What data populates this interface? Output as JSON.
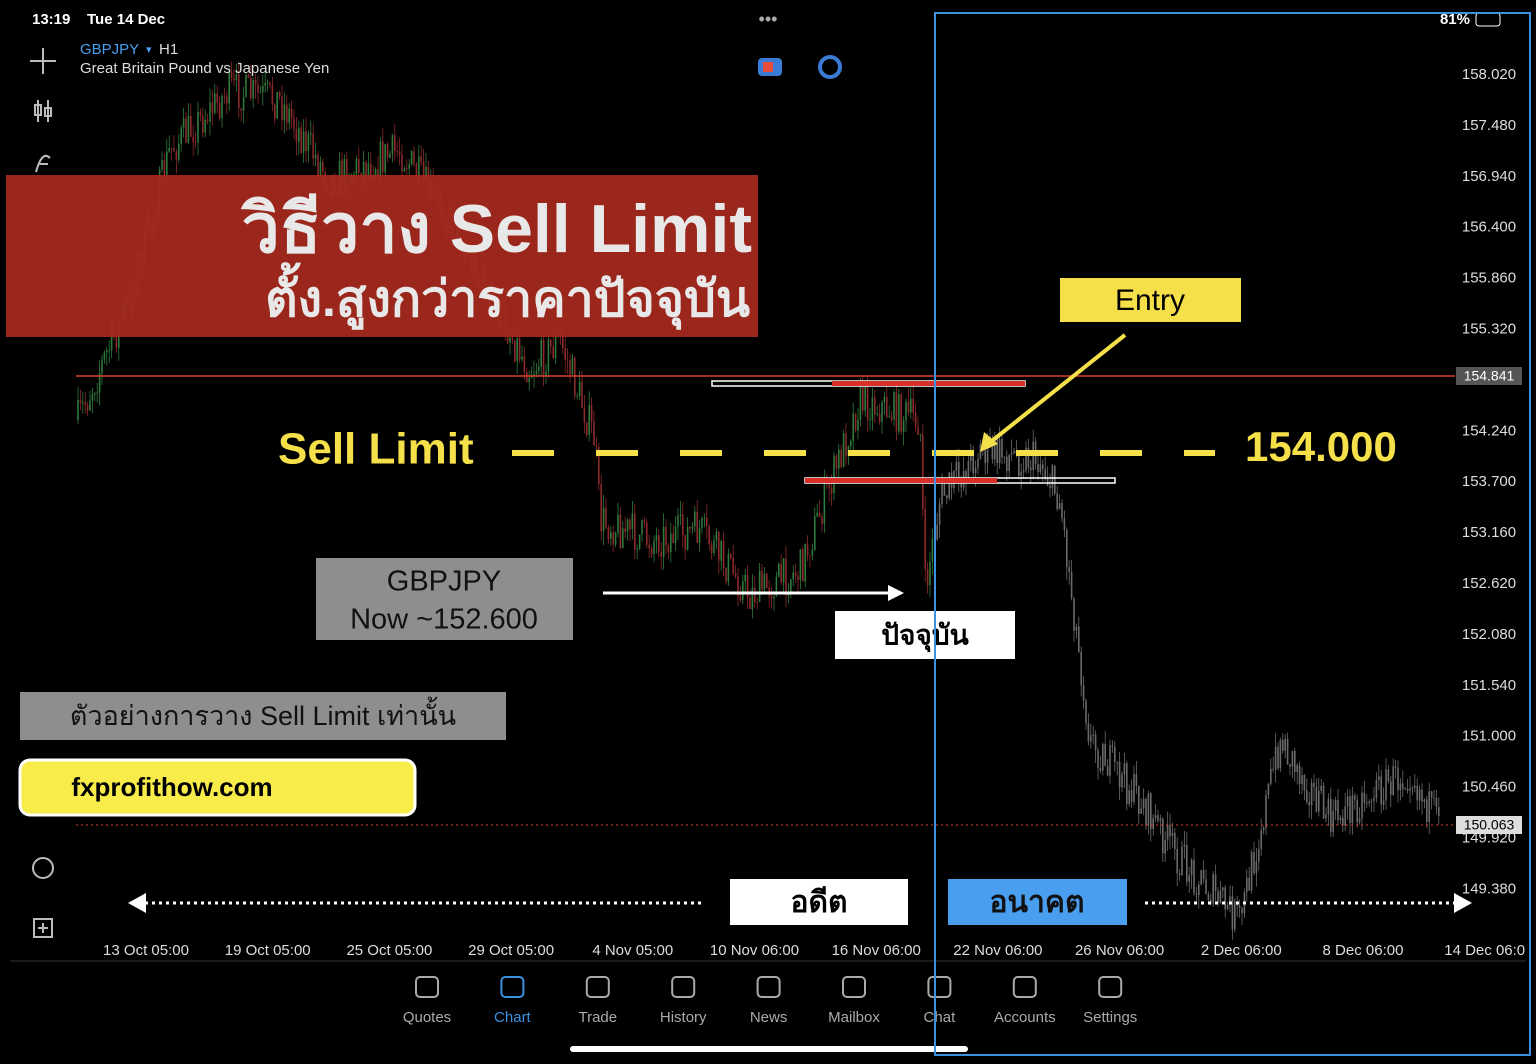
{
  "status_bar": {
    "time": "13:19",
    "date": "Tue 14 Dec",
    "battery": "81%"
  },
  "chart_header": {
    "symbol": "GBPJPY",
    "timeframe": "H1",
    "description": "Great Britain Pound vs Japanese Yen"
  },
  "price_axis": [
    "158.020",
    "157.480",
    "156.940",
    "156.400",
    "155.860",
    "155.320",
    "154.240",
    "153.700",
    "153.160",
    "152.620",
    "152.080",
    "151.540",
    "151.000",
    "150.460",
    "149.920",
    "149.380"
  ],
  "price_markers": [
    "154.841",
    "150.063"
  ],
  "time_axis": [
    "13 Oct 05:00",
    "19 Oct 05:00",
    "25 Oct 05:00",
    "29 Oct 05:00",
    "4 Nov 05:00",
    "10 Nov 06:00",
    "16 Nov 06:00",
    "22 Nov 06:00",
    "26 Nov 06:00",
    "2 Dec 06:00",
    "8 Dec 06:00",
    "14 Dec 06:0"
  ],
  "overlay": {
    "title": "วิธีวาง Sell Limit",
    "subtitle": "ตั้ง.สูงกว่าราคาปัจจุบัน"
  },
  "entry_label": "Entry",
  "sell_limit": {
    "label": "Sell Limit",
    "price": "154.000"
  },
  "now_box": {
    "symbol": "GBPJPY",
    "price": "Now ~152.600"
  },
  "present_label": "ปัจจุบัน",
  "disclaimer": "ตัวอย่างการวาง Sell Limit เท่านั้น",
  "website": "fxprofithow.com",
  "past_label": "อดีต",
  "future_label": "อนาคต",
  "tab_bar": [
    "Quotes",
    "Chart",
    "Trade",
    "History",
    "News",
    "Mailbox",
    "Chat",
    "Accounts",
    "Settings"
  ]
}
